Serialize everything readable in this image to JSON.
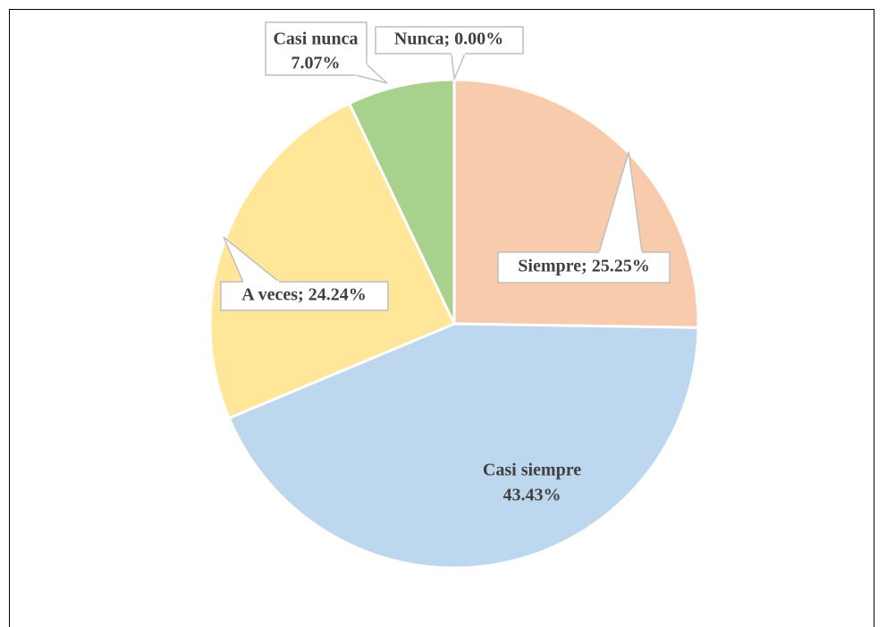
{
  "chart_data": {
    "type": "pie",
    "values": [
      25.25,
      43.43,
      24.24,
      7.07,
      0.0
    ],
    "value_labels": [
      [
        "Siempre; 25.25%"
      ],
      [
        "Casi siempre",
        "43.43%"
      ],
      [
        "A veces; 24.24%"
      ],
      [
        "Casi nunca",
        "7.07%"
      ],
      [
        "Nunca; 0.00%"
      ]
    ],
    "colors": [
      "#f8cbad",
      "#bdd7ee",
      "#ffe699",
      "#a9d18e",
      "#d9d9d9"
    ]
  }
}
